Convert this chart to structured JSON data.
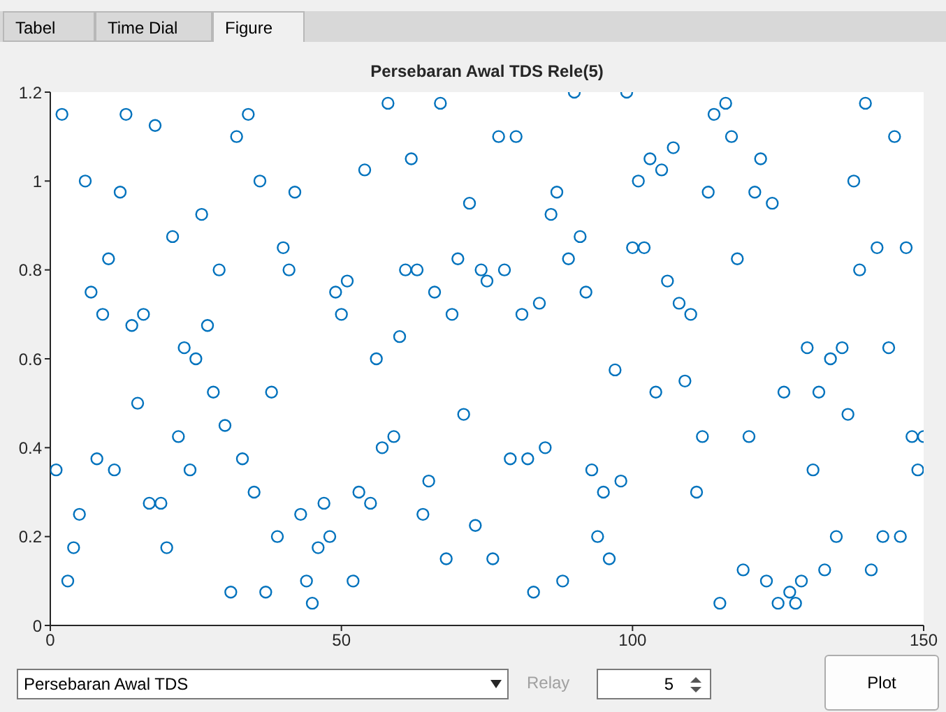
{
  "chart_data": {
    "type": "scatter",
    "title": "Persebaran Awal TDS Rele(5)",
    "x": [
      1,
      2,
      3,
      4,
      5,
      6,
      7,
      8,
      9,
      10,
      11,
      12,
      13,
      14,
      15,
      16,
      17,
      18,
      19,
      20,
      21,
      22,
      23,
      24,
      25,
      26,
      27,
      28,
      29,
      30,
      31,
      32,
      33,
      34,
      35,
      36,
      37,
      38,
      39,
      40,
      41,
      42,
      43,
      44,
      45,
      46,
      47,
      48,
      49,
      50,
      51,
      52,
      53,
      54,
      55,
      56,
      57,
      58,
      59,
      60,
      61,
      62,
      63,
      64,
      65,
      66,
      67,
      68,
      69,
      70,
      71,
      72,
      73,
      74,
      75,
      76,
      77,
      78,
      79,
      80,
      81,
      82,
      83,
      84,
      85,
      86,
      87,
      88,
      89,
      90,
      91,
      92,
      93,
      94,
      95,
      96,
      97,
      98,
      99,
      100,
      101,
      102,
      103,
      104,
      105,
      106,
      107,
      108,
      109,
      110,
      111,
      112,
      113,
      114,
      115,
      116,
      117,
      118,
      119,
      120,
      121,
      122,
      123,
      124,
      125,
      126,
      127,
      128,
      129,
      130,
      131,
      132,
      133,
      134,
      135,
      136,
      137,
      138,
      139,
      140,
      141,
      142,
      143,
      144,
      145,
      146,
      147,
      148,
      149,
      150
    ],
    "values": [
      0.35,
      1.15,
      0.1,
      0.175,
      0.25,
      1.0,
      0.75,
      0.375,
      0.7,
      0.825,
      0.35,
      0.975,
      1.15,
      0.675,
      0.5,
      0.7,
      0.275,
      1.125,
      0.275,
      0.175,
      0.875,
      0.425,
      0.625,
      0.35,
      0.6,
      0.925,
      0.675,
      0.525,
      0.8,
      0.45,
      0.075,
      1.1,
      0.375,
      1.15,
      0.3,
      1.0,
      0.075,
      0.525,
      0.2,
      0.85,
      0.8,
      0.975,
      0.25,
      0.1,
      0.05,
      0.175,
      0.275,
      0.2,
      0.75,
      0.7,
      0.775,
      0.1,
      0.3,
      1.025,
      0.275,
      0.6,
      0.4,
      1.175,
      0.425,
      0.65,
      0.8,
      1.05,
      0.8,
      0.25,
      0.325,
      0.75,
      1.175,
      0.15,
      0.7,
      0.825,
      0.475,
      0.95,
      0.225,
      0.8,
      0.775,
      0.15,
      1.1,
      0.8,
      0.375,
      1.1,
      0.7,
      0.375,
      0.075,
      0.725,
      0.4,
      0.925,
      0.975,
      0.1,
      0.825,
      1.2,
      0.875,
      0.75,
      0.35,
      0.2,
      0.3,
      0.15,
      0.575,
      0.325,
      1.2,
      0.85,
      1.0,
      0.85,
      1.05,
      0.525,
      1.025,
      0.775,
      1.075,
      0.725,
      0.55,
      0.7,
      0.3,
      0.425,
      0.975,
      1.15,
      0.05,
      1.175,
      1.1,
      0.825,
      0.125,
      0.425,
      0.975,
      1.05,
      0.1,
      0.95,
      0.05,
      0.525,
      0.075,
      0.05,
      0.1,
      0.625,
      0.35,
      0.525,
      0.125,
      0.6,
      0.2,
      0.625,
      0.475,
      1.0,
      0.8,
      1.175,
      0.125,
      0.85,
      0.2,
      0.625,
      1.1,
      0.2,
      0.85,
      0.425,
      0.35,
      0.425
    ],
    "color": "#0072bd",
    "marker": "circle",
    "xlim": [
      0,
      150
    ],
    "xticks": [
      0,
      50,
      100,
      150
    ],
    "ylim": [
      0,
      1.2
    ],
    "yticks": [
      0,
      0.2,
      0.4,
      0.6,
      0.8,
      1,
      1.2
    ],
    "annotations": [
      "Tabel",
      "Time Dial",
      "Figure",
      "Persebaran Awal TDS",
      "Relay",
      "5",
      "Plot"
    ]
  }
}
